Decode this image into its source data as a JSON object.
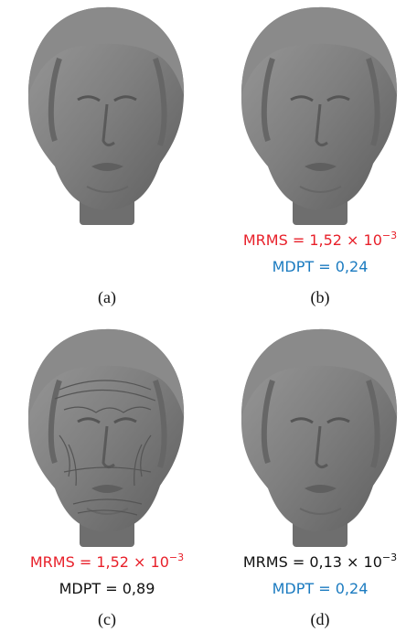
{
  "panels": [
    {
      "caption": "(a)"
    },
    {
      "caption": "(b)",
      "metrics": [
        {
          "text": "MRMS = 1,52 × 10",
          "exponent": "−3",
          "color": "#e8202a"
        },
        {
          "text": "MDPT = 0,24",
          "color": "#1b7bc0"
        }
      ]
    },
    {
      "caption": "(c)",
      "wrinkled": true,
      "metrics": [
        {
          "text": "MRMS = 1,52 × 10",
          "exponent": "−3",
          "color": "#e8202a"
        },
        {
          "text": "MDPT = 0,89",
          "color": "#111111"
        }
      ]
    },
    {
      "caption": "(d)",
      "metrics": [
        {
          "text": "MRMS = 0,13 × 10",
          "exponent": "−3",
          "color": "#111111"
        },
        {
          "text": "MDPT = 0,24",
          "color": "#1b7bc0"
        }
      ]
    }
  ]
}
